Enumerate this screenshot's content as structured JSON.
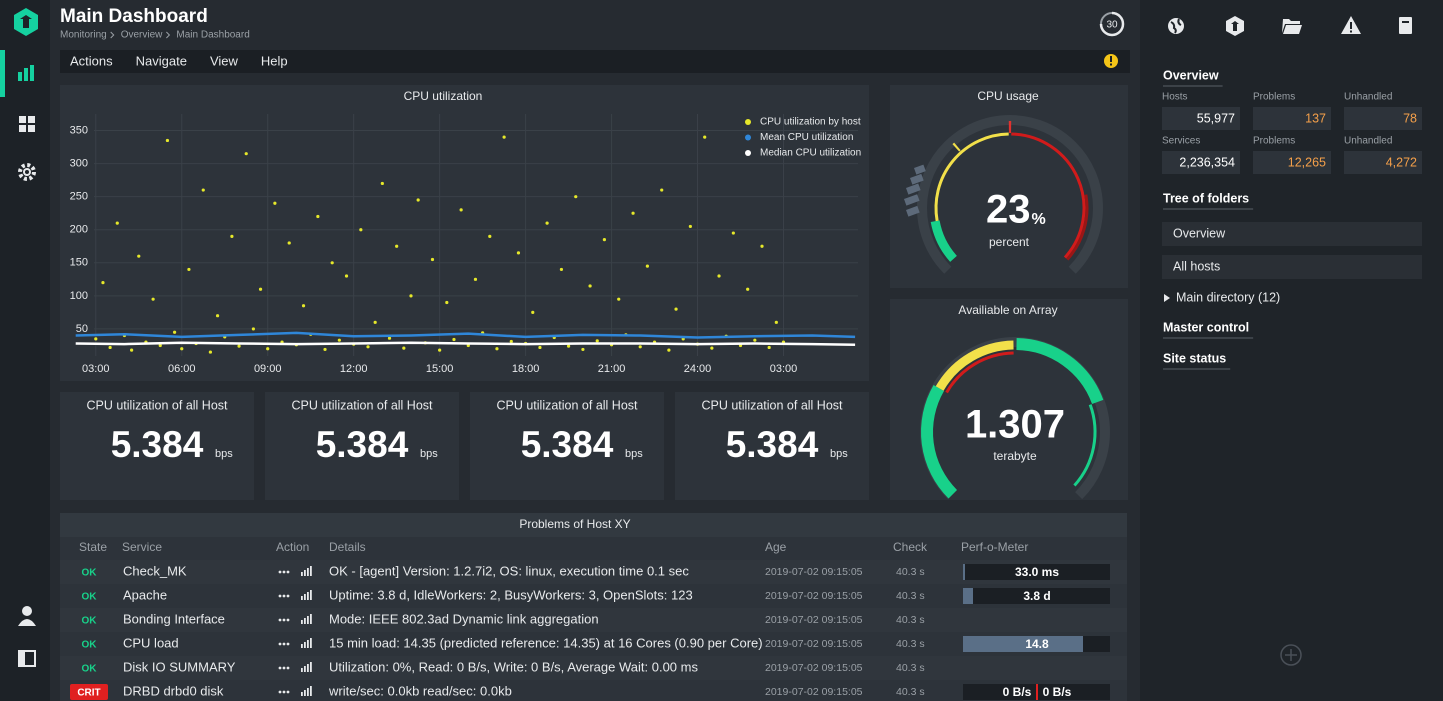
{
  "header": {
    "title": "Main Dashboard",
    "breadcrumb": [
      "Monitoring",
      "Overview",
      "Main Dashboard"
    ],
    "refresh": "30"
  },
  "menu": [
    "Actions",
    "Navigate",
    "View",
    "Help"
  ],
  "chart_data": {
    "type": "scatter",
    "title": "CPU utilization",
    "xlim": [
      2.1,
      29.6
    ],
    "ylim": [
      0,
      375
    ],
    "xticks": [
      {
        "value": 3,
        "label": "03:00"
      },
      {
        "value": 6,
        "label": "06:00"
      },
      {
        "value": 9,
        "label": "09:00"
      },
      {
        "value": 12,
        "label": "12:00"
      },
      {
        "value": 15,
        "label": "15:00"
      },
      {
        "value": 18,
        "label": "18:00"
      },
      {
        "value": 21,
        "label": "21:00"
      },
      {
        "value": 24,
        "label": "24:00"
      },
      {
        "value": 27,
        "label": "03:00"
      }
    ],
    "yticks": [
      50,
      100,
      150,
      200,
      250,
      300,
      350
    ],
    "grid": true,
    "legend": "top-right",
    "series": [
      {
        "name": "CPU utilization by host",
        "color": "#e6e82a",
        "type": "scatter",
        "x": [
          3,
          3.25,
          3.5,
          3.75,
          4,
          4.25,
          4.5,
          4.75,
          5,
          5.25,
          5.5,
          5.75,
          6,
          6.25,
          6.5,
          6.75,
          7,
          7.25,
          7.5,
          7.75,
          8,
          8.25,
          8.5,
          8.75,
          9,
          9.25,
          9.5,
          9.75,
          10,
          10.25,
          10.5,
          10.75,
          11,
          11.25,
          11.5,
          11.75,
          12,
          12.25,
          12.5,
          12.75,
          13,
          13.25,
          13.5,
          13.75,
          14,
          14.25,
          14.5,
          14.75,
          15,
          15.25,
          15.5,
          15.75,
          16,
          16.25,
          16.5,
          16.75,
          17,
          17.25,
          17.5,
          17.75,
          18,
          18.25,
          18.5,
          18.75,
          19,
          19.25,
          19.5,
          19.75,
          20,
          20.25,
          20.5,
          20.75,
          21,
          21.25,
          21.5,
          21.75,
          22,
          22.25,
          22.5,
          22.75,
          23,
          23.25,
          23.5,
          23.75,
          24,
          24.25,
          24.5,
          24.75,
          25,
          25.25,
          25.5,
          25.75,
          26,
          26.25,
          26.5,
          26.75,
          27
        ],
        "values": [
          35,
          120,
          22,
          210,
          40,
          18,
          160,
          30,
          95,
          25,
          335,
          45,
          20,
          140,
          28,
          260,
          15,
          70,
          38,
          190,
          24,
          315,
          50,
          110,
          20,
          240,
          30,
          180,
          26,
          85,
          42,
          220,
          19,
          150,
          33,
          130,
          27,
          200,
          23,
          60,
          270,
          36,
          175,
          21,
          100,
          245,
          29,
          155,
          18,
          90,
          34,
          230,
          25,
          125,
          44,
          190,
          20,
          340,
          31,
          165,
          28,
          75,
          22,
          210,
          37,
          140,
          24,
          250,
          19,
          115,
          32,
          185,
          26,
          95,
          41,
          225,
          23,
          145,
          30,
          260,
          18,
          80,
          35,
          205,
          27,
          340,
          21,
          130,
          39,
          195,
          25,
          110,
          33,
          175,
          22,
          60,
          30
        ]
      },
      {
        "name": "Mean CPU utilization",
        "color": "#2f86d8",
        "type": "line",
        "x": [
          2.3,
          4,
          6,
          8,
          10,
          12,
          14,
          16,
          18,
          20,
          22,
          24,
          26,
          28,
          29.5
        ],
        "values": [
          40,
          42,
          38,
          41,
          44,
          39,
          40,
          43,
          38,
          41,
          40,
          37,
          39,
          40,
          38
        ]
      },
      {
        "name": "Median  CPU utilization",
        "color": "#ffffff",
        "type": "line",
        "x": [
          2.3,
          4,
          6,
          8,
          10,
          12,
          14,
          16,
          18,
          20,
          22,
          24,
          26,
          28,
          29.5
        ],
        "values": [
          28,
          27,
          29,
          28,
          27,
          28,
          29,
          28,
          27,
          28,
          28,
          27,
          28,
          27,
          26
        ]
      }
    ]
  },
  "gauges": [
    {
      "title": "CPU usage",
      "value": "23",
      "unit": "%",
      "label": "percent"
    },
    {
      "title": "Availiable on Array",
      "value": "1.307",
      "label": "terabyte"
    }
  ],
  "kpis": [
    {
      "title": "CPU utilization of all Host",
      "value": "5.384",
      "unit": "bps"
    },
    {
      "title": "CPU utilization of all Host",
      "value": "5.384",
      "unit": "bps"
    },
    {
      "title": "CPU utilization of all Host",
      "value": "5.384",
      "unit": "bps"
    },
    {
      "title": "CPU utilization of all Host",
      "value": "5.384",
      "unit": "bps"
    }
  ],
  "table": {
    "title": "Problems of Host XY",
    "headers": [
      "State",
      "Service",
      "Action",
      "Details",
      "Age",
      "Check",
      "Perf-o-Meter"
    ],
    "rows": [
      {
        "state": "OK",
        "service": "Check_MK",
        "details": "OK - [agent] Version: 1.2.7i2, OS: linux, execution time 0.1 sec",
        "age": "2019-07-02 09:15:05",
        "check": "40.3 s",
        "perf": [
          "33.0 ms"
        ]
      },
      {
        "state": "OK",
        "service": "Apache",
        "details": "Uptime: 3.8 d, IdleWorkers: 2, BusyWorkers: 3, OpenSlots: 123",
        "age": "2019-07-02 09:15:05",
        "check": "40.3 s",
        "perf": [
          "3.8 d"
        ]
      },
      {
        "state": "OK",
        "service": "Bonding Interface",
        "details": "Mode: IEEE 802.3ad Dynamic link aggregation",
        "age": "2019-07-02 09:15:05",
        "check": "40.3 s"
      },
      {
        "state": "OK",
        "service": "CPU load",
        "details": "15 min load: 14.35 (predicted reference: 14.35) at 16 Cores (0.90 per Core)",
        "age": "2019-07-02 09:15:05",
        "check": "40.3 s",
        "perf": [
          "14.8"
        ]
      },
      {
        "state": "OK",
        "service": "Disk IO SUMMARY",
        "details": "Utilization: 0%, Read: 0 B/s, Write: 0 B/s, Average Wait: 0.00 ms",
        "age": "2019-07-02 09:15:05",
        "check": "40.3 s"
      },
      {
        "state": "CRIT",
        "service": "DRBD drbd0 disk",
        "details": "write/sec: 0.0kb read/sec: 0.0kb",
        "age": "2019-07-02 09:15:05",
        "check": "40.3 s",
        "perf": [
          "0 B/s",
          "0 B/s"
        ]
      }
    ]
  },
  "sidebar": {
    "overview": "Overview",
    "stats": [
      {
        "label": "Hosts",
        "value": "55,977"
      },
      {
        "label": "Problems",
        "value": "137"
      },
      {
        "label": "Unhandled",
        "value": "78"
      },
      {
        "label": "Services",
        "value": "2,236,354"
      },
      {
        "label": "Problems",
        "value": "12,265"
      },
      {
        "label": "Unhandled",
        "value": "4,272"
      }
    ],
    "tree": "Tree of folders",
    "items": [
      "Overview",
      "All hosts"
    ],
    "directory": "Main directory (12)",
    "links": [
      "Master control",
      "Site status"
    ]
  }
}
